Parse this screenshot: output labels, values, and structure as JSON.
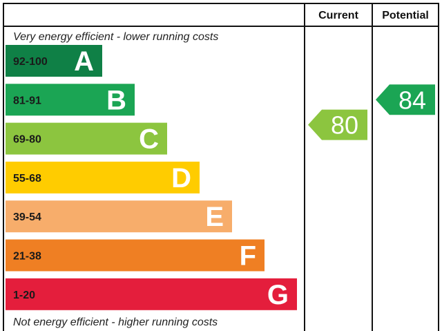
{
  "chart_data": {
    "type": "bar",
    "title": "",
    "columns": {
      "current": "Current",
      "potential": "Potential"
    },
    "top_note": "Very energy efficient - lower running costs",
    "bottom_note": "Not energy efficient - higher running costs",
    "bands": [
      {
        "letter": "A",
        "range": "92-100",
        "min": 92,
        "max": 100,
        "color": "#0f8046"
      },
      {
        "letter": "B",
        "range": "81-91",
        "min": 81,
        "max": 91,
        "color": "#1ba554"
      },
      {
        "letter": "C",
        "range": "69-80",
        "min": 69,
        "max": 80,
        "color": "#8cc53f"
      },
      {
        "letter": "D",
        "range": "55-68",
        "min": 55,
        "max": 68,
        "color": "#ffcc00"
      },
      {
        "letter": "E",
        "range": "39-54",
        "min": 39,
        "max": 54,
        "color": "#f7ad6b"
      },
      {
        "letter": "F",
        "range": "21-38",
        "min": 21,
        "max": 38,
        "color": "#ef7f23"
      },
      {
        "letter": "G",
        "range": "1-20",
        "min": 1,
        "max": 20,
        "color": "#e41e3c"
      }
    ],
    "ratings": {
      "current": {
        "value": 80,
        "band": "C",
        "color": "#8cc53f"
      },
      "potential": {
        "value": 84,
        "band": "B",
        "color": "#1ba554"
      }
    }
  }
}
